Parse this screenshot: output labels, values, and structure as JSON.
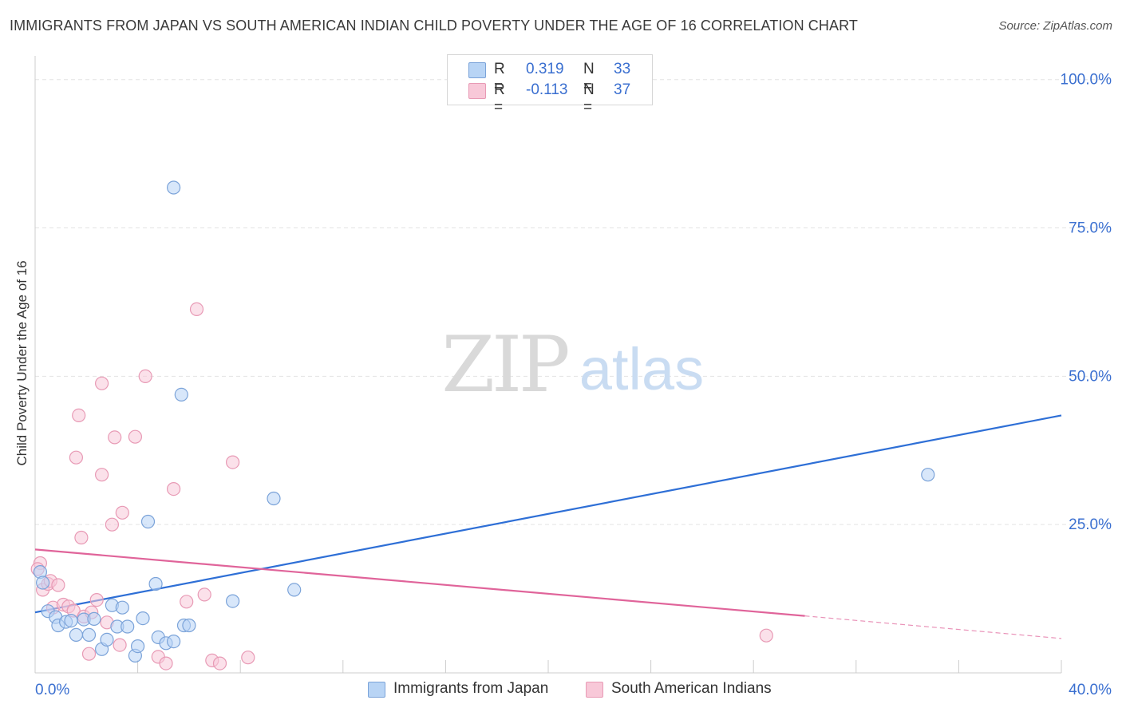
{
  "title": "IMMIGRANTS FROM JAPAN VS SOUTH AMERICAN INDIAN CHILD POVERTY UNDER THE AGE OF 16 CORRELATION CHART",
  "source": "Source: ZipAtlas.com",
  "watermark": {
    "zip": "ZIP",
    "atlas": "atlas"
  },
  "legend": {
    "r_label": "R =",
    "n_label": "N =",
    "series": [
      {
        "name": "Immigrants from Japan",
        "r": "0.319",
        "n": "33"
      },
      {
        "name": "South American Indians",
        "r": "-0.113",
        "n": "37"
      }
    ]
  },
  "colors": {
    "japan_fill": "#b8d4f5",
    "japan_stroke": "#7ba3d9",
    "japan_line": "#2e6fd6",
    "sai_fill": "#f8c8d8",
    "sai_stroke": "#e89ab5",
    "sai_line": "#e0649a",
    "tick_text": "#3a6fd0",
    "grid": "#e3e3e3"
  },
  "chart_data": {
    "type": "scatter",
    "title": "IMMIGRANTS FROM JAPAN VS SOUTH AMERICAN INDIAN CHILD POVERTY UNDER THE AGE OF 16 CORRELATION CHART",
    "xlabel": "",
    "ylabel": "Child Poverty Under the Age of 16",
    "xlim": [
      0,
      40
    ],
    "ylim": [
      0,
      104
    ],
    "x_tick_labels": [
      {
        "value": 0,
        "label": "0.0%"
      },
      {
        "value": 40,
        "label": "40.0%"
      }
    ],
    "y_tick_labels": [
      {
        "value": 25,
        "label": "25.0%"
      },
      {
        "value": 50,
        "label": "50.0%"
      },
      {
        "value": 75,
        "label": "75.0%"
      },
      {
        "value": 100,
        "label": "100.0%"
      }
    ],
    "series": [
      {
        "name": "Immigrants from Japan",
        "points": [
          [
            0.2,
            17.0
          ],
          [
            0.3,
            15.2
          ],
          [
            0.5,
            10.4
          ],
          [
            0.8,
            9.4
          ],
          [
            0.9,
            8.0
          ],
          [
            1.2,
            8.6
          ],
          [
            1.4,
            8.8
          ],
          [
            1.6,
            6.4
          ],
          [
            1.9,
            9.0
          ],
          [
            2.1,
            6.4
          ],
          [
            2.3,
            9.1
          ],
          [
            2.6,
            4.0
          ],
          [
            2.8,
            5.6
          ],
          [
            3.0,
            11.4
          ],
          [
            3.2,
            7.8
          ],
          [
            3.4,
            11.0
          ],
          [
            3.6,
            7.8
          ],
          [
            3.9,
            2.9
          ],
          [
            4.0,
            4.5
          ],
          [
            4.2,
            9.2
          ],
          [
            4.4,
            25.5
          ],
          [
            4.7,
            15.0
          ],
          [
            4.8,
            6.0
          ],
          [
            5.1,
            5.0
          ],
          [
            5.4,
            81.8
          ],
          [
            5.4,
            5.3
          ],
          [
            5.7,
            46.9
          ],
          [
            5.8,
            8.0
          ],
          [
            6.0,
            8.0
          ],
          [
            7.7,
            12.1
          ],
          [
            9.3,
            29.4
          ],
          [
            10.1,
            14.0
          ],
          [
            34.8,
            33.4
          ]
        ],
        "trend_line": {
          "x": [
            0,
            40
          ],
          "y": [
            10.2,
            43.4
          ]
        }
      },
      {
        "name": "South American Indians",
        "points": [
          [
            0.2,
            18.5
          ],
          [
            0.3,
            14.0
          ],
          [
            0.5,
            15.0
          ],
          [
            0.6,
            15.5
          ],
          [
            0.7,
            11.0
          ],
          [
            0.9,
            14.8
          ],
          [
            1.1,
            11.5
          ],
          [
            1.3,
            11.2
          ],
          [
            1.5,
            10.5
          ],
          [
            1.6,
            36.3
          ],
          [
            1.7,
            43.4
          ],
          [
            1.8,
            22.8
          ],
          [
            1.9,
            9.5
          ],
          [
            2.1,
            3.2
          ],
          [
            2.2,
            10.2
          ],
          [
            2.4,
            12.3
          ],
          [
            2.6,
            48.8
          ],
          [
            2.6,
            33.4
          ],
          [
            2.8,
            8.5
          ],
          [
            3.0,
            25.0
          ],
          [
            3.1,
            39.7
          ],
          [
            3.3,
            4.7
          ],
          [
            3.4,
            27.0
          ],
          [
            3.9,
            39.8
          ],
          [
            4.3,
            50.0
          ],
          [
            4.8,
            2.7
          ],
          [
            5.1,
            1.6
          ],
          [
            5.4,
            31.0
          ],
          [
            5.9,
            12.0
          ],
          [
            6.3,
            61.3
          ],
          [
            6.6,
            13.2
          ],
          [
            6.9,
            2.1
          ],
          [
            7.2,
            1.6
          ],
          [
            7.7,
            35.5
          ],
          [
            8.3,
            2.6
          ],
          [
            28.5,
            6.3
          ],
          [
            0.1,
            17.5
          ]
        ],
        "trend_line": {
          "x": [
            0,
            30
          ],
          "y": [
            20.8,
            9.6
          ]
        },
        "trend_line_dashed": {
          "x": [
            30,
            40
          ],
          "y": [
            9.6,
            5.8
          ]
        }
      }
    ]
  }
}
